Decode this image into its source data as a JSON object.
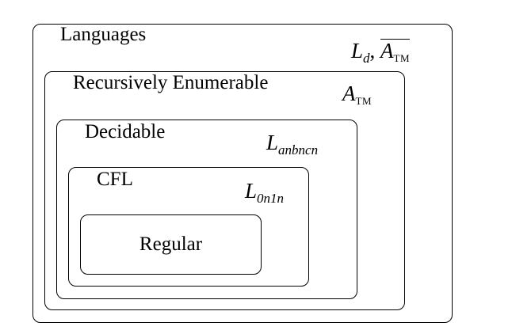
{
  "regions": {
    "languages": {
      "label": "Languages",
      "examples": {
        "first": "L",
        "first_sub": "d",
        "separator": ",",
        "second": "A",
        "second_sub": "TM",
        "second_complemented": true
      }
    },
    "recursively_enumerable": {
      "label": "Recursively Enumerable",
      "example": {
        "main": "A",
        "sub": "TM"
      }
    },
    "decidable": {
      "label": "Decidable",
      "example": {
        "main": "L",
        "sub": "anbncn"
      }
    },
    "cfl": {
      "label": "CFL",
      "example": {
        "main": "L",
        "sub": "0n1n"
      }
    },
    "regular": {
      "label": "Regular"
    }
  }
}
